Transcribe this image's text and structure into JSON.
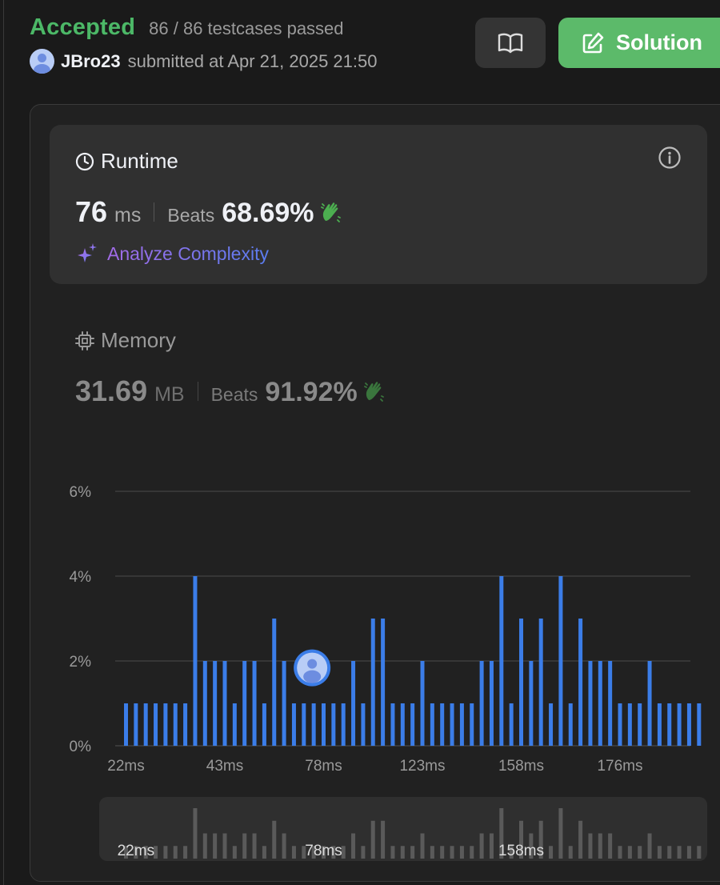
{
  "header": {
    "status": "Accepted",
    "testcases": "86 / 86 testcases passed",
    "username": "JBro23",
    "submitted_at": "submitted at Apr 21, 2025 21:50"
  },
  "toolbar": {
    "book_icon": "book-open-icon",
    "solution_label": "Solution"
  },
  "runtime": {
    "title": "Runtime",
    "value": "76",
    "unit": "ms",
    "beats_label": "Beats",
    "beats_value": "68.69%",
    "analyze_label": "Analyze Complexity"
  },
  "memory": {
    "title": "Memory",
    "value": "31.69",
    "unit": "MB",
    "beats_label": "Beats",
    "beats_value": "91.92%"
  },
  "colors": {
    "accepted": "#4cb867",
    "solution_button": "#5cba6a",
    "bar": "#3b7de8",
    "minimap_bar": "#5a5a5a"
  },
  "chart_data": {
    "type": "bar",
    "ylabel": "",
    "xlabel": "",
    "ylim": [
      0,
      6
    ],
    "y_ticks": [
      "0%",
      "2%",
      "4%",
      "6%"
    ],
    "x_tick_labels": [
      "22ms",
      "43ms",
      "78ms",
      "123ms",
      "158ms",
      "176ms"
    ],
    "x_tick_bar_index": [
      0,
      10,
      20,
      30,
      40,
      50
    ],
    "user_bar_index": 19,
    "user_marker_value": 1.8,
    "values": [
      1,
      1,
      1,
      1,
      1,
      1,
      1,
      4,
      2,
      2,
      2,
      1,
      2,
      2,
      1,
      3,
      2,
      1,
      1,
      1,
      1,
      1,
      1,
      2,
      1,
      3,
      3,
      1,
      1,
      1,
      2,
      1,
      1,
      1,
      1,
      1,
      2,
      2,
      4,
      1,
      3,
      2,
      3,
      1,
      4,
      1,
      3,
      2,
      2,
      2,
      1,
      1,
      1,
      2,
      1,
      1,
      1,
      1,
      1
    ],
    "minimap_labels": [
      "22ms",
      "78ms",
      "158ms"
    ],
    "minimap_label_bar_index": [
      1,
      20,
      40
    ]
  }
}
